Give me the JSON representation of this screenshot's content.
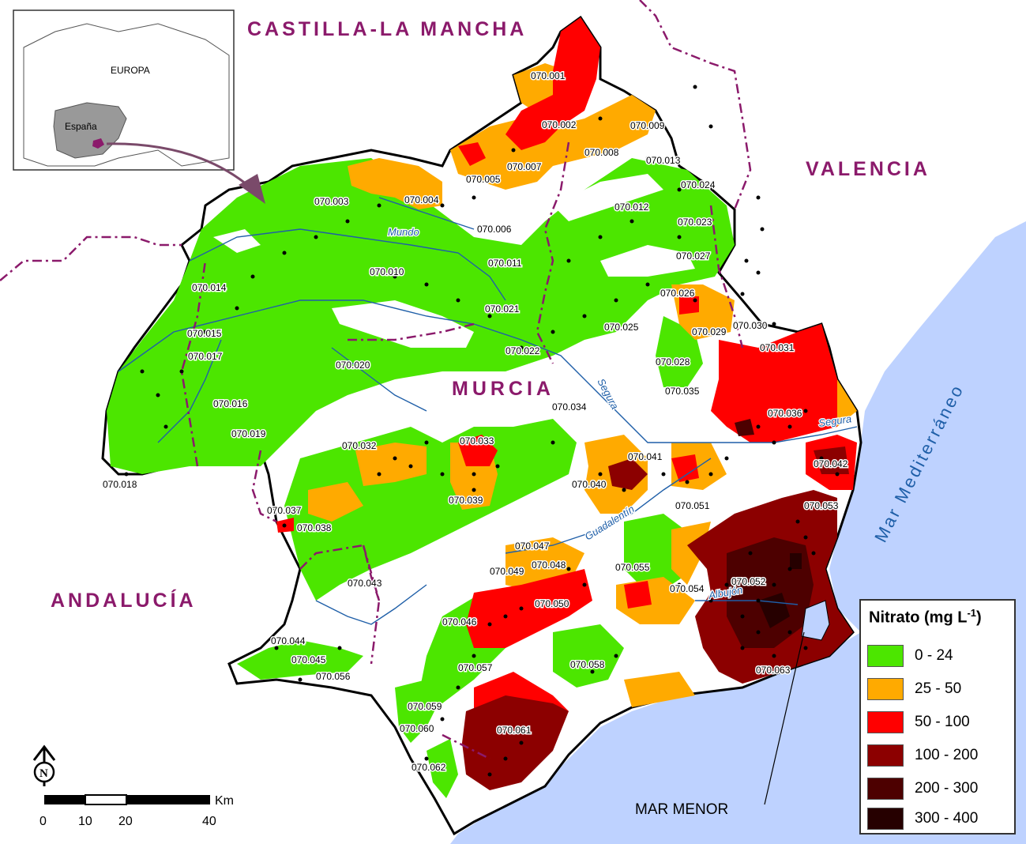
{
  "regions": {
    "castilla": "CASTILLA-LA MANCHA",
    "valencia": "VALENCIA",
    "andalucia": "ANDALUCÍA",
    "murcia": "MURCIA",
    "sea": "Mar Mediterráneo",
    "mar_menor": "MAR MENOR"
  },
  "inset": {
    "europa": "EUROPA",
    "espana": "España"
  },
  "rivers": {
    "mundo": "Mundo",
    "segura_a": "Segura",
    "segura_b": "Segura",
    "guadalentin": "Guadalentín",
    "albujon": "Albujón"
  },
  "aquifers": [
    "070.001",
    "070.002",
    "070.003",
    "070.004",
    "070.005",
    "070.006",
    "070.007",
    "070.008",
    "070.009",
    "070.010",
    "070.011",
    "070.012",
    "070.013",
    "070.014",
    "070.015",
    "070.016",
    "070.017",
    "070.018",
    "070.019",
    "070.020",
    "070.021",
    "070.022",
    "070.023",
    "070.024",
    "070.025",
    "070.026",
    "070.027",
    "070.028",
    "070.029",
    "070.030",
    "070.031",
    "070.032",
    "070.033",
    "070.034",
    "070.035",
    "070.036",
    "070.037",
    "070.038",
    "070.039",
    "070.040",
    "070.041",
    "070.042",
    "070.043",
    "070.044",
    "070.045",
    "070.046",
    "070.047",
    "070.048",
    "070.049",
    "070.050",
    "070.051",
    "070.052",
    "070.053",
    "070.054",
    "070.055",
    "070.056",
    "070.057",
    "070.058",
    "070.059",
    "070.060",
    "070.061",
    "070.062",
    "070.063"
  ],
  "legend": {
    "title": "Nitrato (mg L",
    "title_sup": "-1",
    "title_end": ")",
    "items": [
      {
        "label": "0 - 24",
        "color": "#4ce600"
      },
      {
        "label": "25 - 50",
        "color": "#ffaa00"
      },
      {
        "label": "50 - 100",
        "color": "#ff0000"
      },
      {
        "label": "100 - 200",
        "color": "#8c0000"
      },
      {
        "label": "200 - 300",
        "color": "#4d0000"
      },
      {
        "label": "300 - 400",
        "color": "#260000"
      }
    ]
  },
  "scale": {
    "unit": "Km",
    "ticks": [
      "0",
      "10",
      "20",
      "40"
    ]
  },
  "north": "N",
  "colors": {
    "sea": "#bed2ff",
    "border": "#8b1a6b",
    "river": "#1f5fa8"
  }
}
